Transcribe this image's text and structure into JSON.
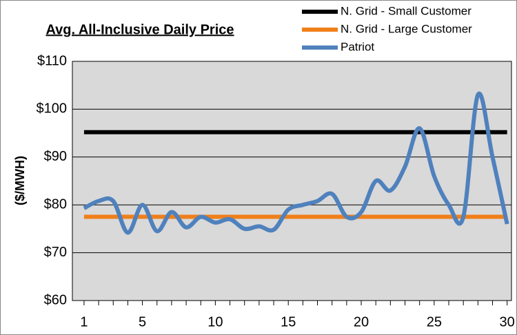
{
  "chart_data": {
    "type": "line",
    "title": "Avg. All-Inclusive Daily Price",
    "y_label": "($/MWH)",
    "x": [
      1,
      2,
      3,
      4,
      5,
      6,
      7,
      8,
      9,
      10,
      11,
      12,
      13,
      14,
      15,
      16,
      17,
      18,
      19,
      20,
      21,
      22,
      23,
      24,
      25,
      26,
      27,
      28,
      29,
      30
    ],
    "series": [
      {
        "name": "N. Grid - Small Customer",
        "color": "#000000",
        "values": [
          95.2,
          95.2,
          95.2,
          95.2,
          95.2,
          95.2,
          95.2,
          95.2,
          95.2,
          95.2,
          95.2,
          95.2,
          95.2,
          95.2,
          95.2,
          95.2,
          95.2,
          95.2,
          95.2,
          95.2,
          95.2,
          95.2,
          95.2,
          95.2,
          95.2,
          95.2,
          95.2,
          95.2,
          95.2,
          95.2
        ]
      },
      {
        "name": "N. Grid - Large Customer",
        "color": "#f07f1a",
        "values": [
          77.5,
          77.5,
          77.5,
          77.5,
          77.5,
          77.5,
          77.5,
          77.5,
          77.5,
          77.5,
          77.5,
          77.5,
          77.5,
          77.5,
          77.5,
          77.5,
          77.5,
          77.5,
          77.5,
          77.5,
          77.5,
          77.5,
          77.5,
          77.5,
          77.5,
          77.5,
          77.5,
          77.5,
          77.5,
          77.5
        ]
      },
      {
        "name": "Patriot",
        "color": "#4f81bd",
        "values": [
          79.3,
          80.8,
          80.8,
          74.2,
          80.0,
          74.5,
          78.5,
          75.3,
          77.5,
          76.3,
          77.0,
          75.0,
          75.5,
          74.8,
          79.0,
          80.0,
          80.8,
          82.3,
          77.5,
          78.5,
          85.0,
          83.0,
          88.0,
          96.0,
          86.0,
          80.0,
          77.5,
          103.0,
          90.0,
          76.0
        ]
      }
    ],
    "xlim": [
      0.2,
      30.3
    ],
    "xticks": [
      1,
      5,
      10,
      15,
      20,
      25,
      30
    ],
    "ylim": [
      60,
      110
    ],
    "yticks": [
      {
        "value": 60,
        "label": "$60"
      },
      {
        "value": 70,
        "label": "$70"
      },
      {
        "value": 80,
        "label": "$80"
      },
      {
        "value": 90,
        "label": "$90"
      },
      {
        "value": 100,
        "label": "$100"
      },
      {
        "value": 110,
        "label": "$110"
      }
    ],
    "grid": true,
    "legend": "top-right"
  }
}
